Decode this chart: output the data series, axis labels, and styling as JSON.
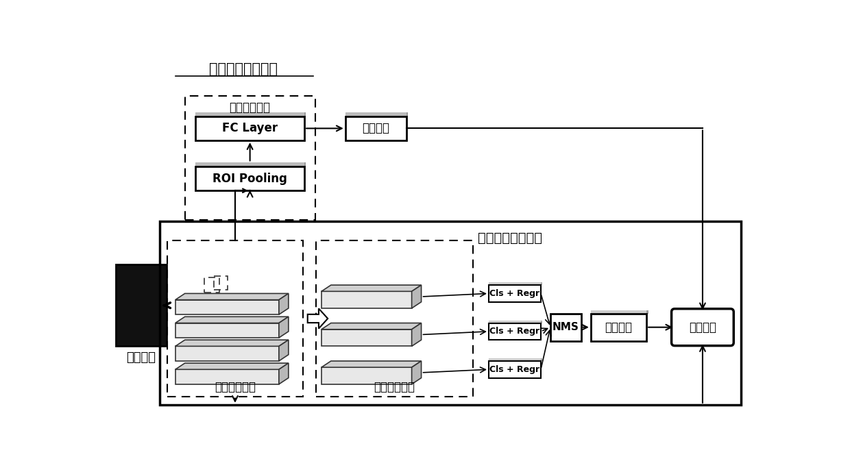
{
  "title_cls": "目标分类网络分支",
  "title_base": "基础检测网络分支",
  "label_input": "输入图像",
  "label_region_cls": "区域分类模块",
  "label_fc": "FC Layer",
  "label_roi": "ROI Pooling",
  "label_cls_result": "分类结果",
  "label_feature": "特征提取模块",
  "label_detect": "目标检测模块",
  "label_cls_regr": "Cls + Regr",
  "label_nms": "NMS",
  "label_loc_result": "定位结果",
  "label_detect_result": "检测结果",
  "bg_color": "#ffffff",
  "text_color": "#000000",
  "layer_fc": "#e8e8e8",
  "layer_dark": "#c8c8c8",
  "layer_side": "#b0b0b0"
}
